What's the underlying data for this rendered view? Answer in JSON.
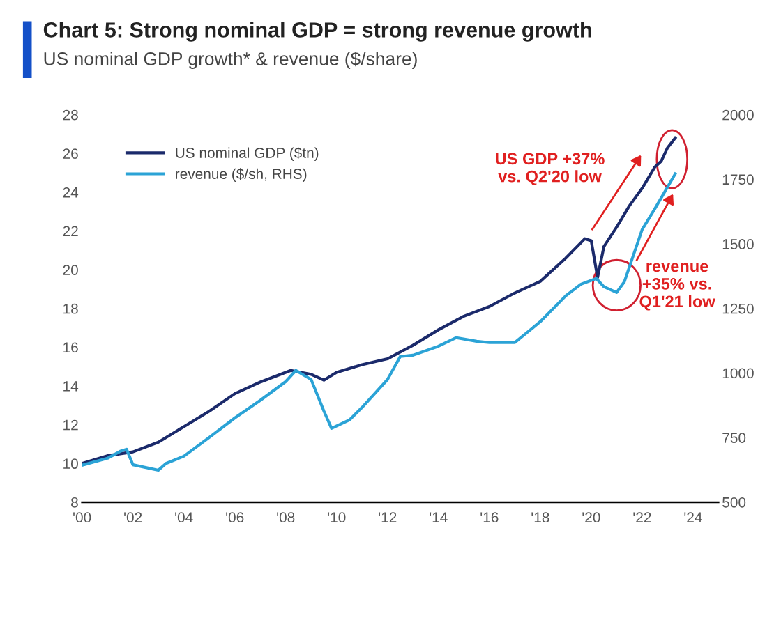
{
  "chart_data": {
    "type": "line",
    "title": "Chart 5: Strong nominal GDP = strong revenue growth",
    "subtitle": "US nominal GDP growth* & revenue ($/share)",
    "x": [
      2000,
      2001,
      2002,
      2003,
      2004,
      2005,
      2006,
      2007,
      2008.2,
      2009,
      2009.5,
      2010,
      2011,
      2012,
      2013,
      2014,
      2015,
      2016,
      2017,
      2018,
      2019,
      2019.75,
      2020.0,
      2020.25,
      2020.5,
      2021,
      2021.5,
      2022,
      2022.5,
      2022.75,
      2023.0,
      2023.3
    ],
    "series": [
      {
        "name": "US nominal GDP ($tn)",
        "color": "#1b2a6b",
        "values": [
          10.0,
          10.4,
          10.6,
          11.1,
          11.9,
          12.7,
          13.6,
          14.2,
          14.8,
          14.6,
          14.3,
          14.7,
          15.1,
          15.4,
          16.1,
          16.9,
          17.6,
          18.1,
          18.8,
          19.4,
          20.6,
          21.6,
          21.5,
          19.6,
          21.2,
          22.2,
          23.3,
          24.2,
          25.3,
          25.6,
          26.3,
          26.8
        ]
      },
      {
        "name": "revenue ($/sh, RHS)",
        "color": "#2ba3d6",
        "axis": "y2",
        "x": [
          2000,
          2001,
          2001.5,
          2001.75,
          2002.0,
          2003,
          2003.3,
          2004,
          2005,
          2006,
          2007,
          2008,
          2008.4,
          2009,
          2009.5,
          2009.8,
          2010.5,
          2011,
          2012,
          2012.5,
          2013,
          2014,
          2014.7,
          2015.5,
          2016,
          2017,
          2018,
          2019,
          2019.6,
          2020.2,
          2020.5,
          2021.0,
          2021.3,
          2022,
          2022.5,
          2023.3
        ],
        "values": [
          643,
          670,
          697,
          705,
          645,
          624,
          650,
          678,
          751,
          826,
          894,
          967,
          1010,
          975,
          853,
          786,
          818,
          867,
          975,
          1064,
          1069,
          1104,
          1137,
          1123,
          1118,
          1118,
          1199,
          1299,
          1344,
          1366,
          1334,
          1312,
          1353,
          1555,
          1636,
          1771
        ]
      }
    ],
    "xlim": [
      2000,
      2025
    ],
    "xticks": [
      {
        "value": 2000,
        "label": "'00"
      },
      {
        "value": 2002,
        "label": "'02"
      },
      {
        "value": 2004,
        "label": "'04"
      },
      {
        "value": 2006,
        "label": "'06"
      },
      {
        "value": 2008,
        "label": "'08"
      },
      {
        "value": 2010,
        "label": "'10"
      },
      {
        "value": 2012,
        "label": "'12"
      },
      {
        "value": 2014,
        "label": "'14"
      },
      {
        "value": 2016,
        "label": "'16"
      },
      {
        "value": 2018,
        "label": "'18"
      },
      {
        "value": 2020,
        "label": "'20"
      },
      {
        "value": 2022,
        "label": "'22"
      },
      {
        "value": 2024,
        "label": "'24"
      }
    ],
    "ylim": [
      8,
      28
    ],
    "yticks": [
      8,
      10,
      12,
      14,
      16,
      18,
      20,
      22,
      24,
      26,
      28
    ],
    "y2lim": [
      500,
      2000
    ],
    "y2ticks": [
      500,
      750,
      1000,
      1250,
      1500,
      1750,
      2000
    ],
    "grid": false,
    "legend": "top left",
    "annotations": [
      "US GDP +37%\nvs. Q2'20 low",
      "revenue\n+35% vs.\nQ1'21 low"
    ]
  }
}
